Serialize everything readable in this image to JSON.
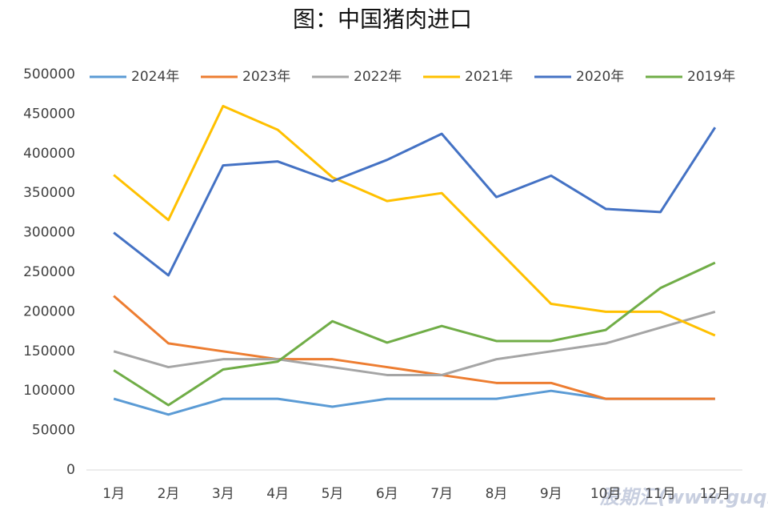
{
  "chart_data": {
    "type": "line",
    "title": "图：中国猪肉进口",
    "categories": [
      "1月",
      "2月",
      "3月",
      "4月",
      "5月",
      "6月",
      "7月",
      "8月",
      "9月",
      "10月",
      "11月",
      "12月"
    ],
    "series": [
      {
        "name": "2024年",
        "color": "#5b9bd5",
        "values": [
          90000,
          70000,
          90000,
          90000,
          80000,
          90000,
          90000,
          90000,
          100000,
          90000,
          90000,
          90000
        ]
      },
      {
        "name": "2023年",
        "color": "#ed7d31",
        "values": [
          220000,
          160000,
          150000,
          140000,
          140000,
          130000,
          120000,
          110000,
          110000,
          90000,
          90000,
          90000
        ]
      },
      {
        "name": "2022年",
        "color": "#a5a5a5",
        "values": [
          150000,
          130000,
          140000,
          140000,
          130000,
          120000,
          120000,
          140000,
          150000,
          160000,
          180000,
          200000
        ]
      },
      {
        "name": "2021年",
        "color": "#ffc000",
        "values": [
          373000,
          316000,
          460000,
          430000,
          370000,
          340000,
          350000,
          280000,
          210000,
          200000,
          200000,
          170000
        ]
      },
      {
        "name": "2020年",
        "color": "#4472c4",
        "values": [
          300000,
          246000,
          385000,
          390000,
          365000,
          392000,
          425000,
          345000,
          372000,
          330000,
          326000,
          433000
        ]
      },
      {
        "name": "2019年",
        "color": "#70ad47",
        "values": [
          126000,
          82000,
          127000,
          137000,
          188000,
          161000,
          182000,
          163000,
          163000,
          177000,
          230000,
          262000
        ]
      }
    ],
    "ylim": [
      0,
      500000
    ],
    "yticks": [
      0,
      50000,
      100000,
      150000,
      200000,
      250000,
      300000,
      350000,
      400000,
      450000,
      500000
    ],
    "grid": false,
    "legend": "top",
    "watermark": "股期汇(www.guqihui.cn)"
  }
}
